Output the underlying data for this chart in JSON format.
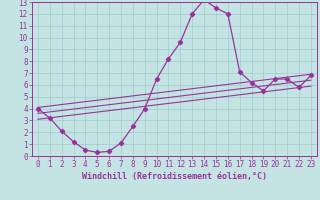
{
  "title": "",
  "xlabel": "Windchill (Refroidissement éolien,°C)",
  "ylabel": "",
  "bg_color": "#c4e4e4",
  "line_color": "#993399",
  "grid_color": "#a0cccc",
  "xlim": [
    -0.5,
    23.5
  ],
  "ylim": [
    0,
    13
  ],
  "xticks": [
    0,
    1,
    2,
    3,
    4,
    5,
    6,
    7,
    8,
    9,
    10,
    11,
    12,
    13,
    14,
    15,
    16,
    17,
    18,
    19,
    20,
    21,
    22,
    23
  ],
  "yticks": [
    0,
    1,
    2,
    3,
    4,
    5,
    6,
    7,
    8,
    9,
    10,
    11,
    12,
    13
  ],
  "trend1_x": [
    0,
    23
  ],
  "trend1_y": [
    4.1,
    6.9
  ],
  "trend2_x": [
    0,
    23
  ],
  "trend2_y": [
    3.6,
    6.4
  ],
  "trend3_x": [
    0,
    23
  ],
  "trend3_y": [
    3.1,
    5.9
  ],
  "main_x": [
    0,
    1,
    2,
    3,
    4,
    5,
    6,
    7,
    8,
    9,
    10,
    11,
    12,
    13,
    14,
    15,
    16,
    17,
    18,
    19,
    20,
    21,
    22,
    23
  ],
  "main_y": [
    4.0,
    3.2,
    2.1,
    1.2,
    0.5,
    0.3,
    0.4,
    1.1,
    2.5,
    4.0,
    6.5,
    8.2,
    9.6,
    12.0,
    13.2,
    12.5,
    12.0,
    7.1,
    6.2,
    5.5,
    6.5,
    6.5,
    5.8,
    6.8
  ],
  "tick_fontsize": 5.5,
  "xlabel_fontsize": 6.0
}
